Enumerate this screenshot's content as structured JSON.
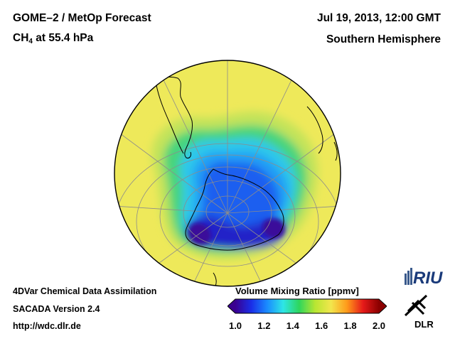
{
  "header": {
    "instrument": "GOME–2 / MetOp Forecast",
    "species_main": "CH",
    "species_sub": "4",
    "species_rest": " at 55.4 hPa",
    "datetime": "Jul 19, 2013, 12:00 GMT",
    "region": "Southern Hemisphere"
  },
  "footer": {
    "line1": "4DVar Chemical Data Assimilation",
    "line2": "SACADA Version 2.4",
    "line3": "http://wdc.dlr.de"
  },
  "colorbar": {
    "title": "Volume Mixing Ratio [ppmv]",
    "range": [
      1.0,
      2.0
    ],
    "ticks": [
      "1.0",
      "1.2",
      "1.4",
      "1.6",
      "1.8",
      "2.0"
    ],
    "colors": [
      "#3a0090",
      "#1a2ee8",
      "#1a8cff",
      "#2ee6e6",
      "#2ed65c",
      "#b8e632",
      "#f2e64d",
      "#ff9a1a",
      "#e61a1a",
      "#8b0000"
    ]
  },
  "map": {
    "projection": "orthographic, south pole centered",
    "background_value": "yellow ~1.6 ppmv",
    "colors": {
      "yellow": "#eee95a",
      "yellow_green": "#c2e35a",
      "green": "#47d47c",
      "cyan": "#2ec8ea",
      "light_blue": "#229ef5",
      "blue": "#1a5ef0",
      "dark_blue": "#2424c8",
      "purple": "#3a0a9a"
    }
  },
  "logos": {
    "riu": "RIU",
    "dlr": "DLR"
  }
}
